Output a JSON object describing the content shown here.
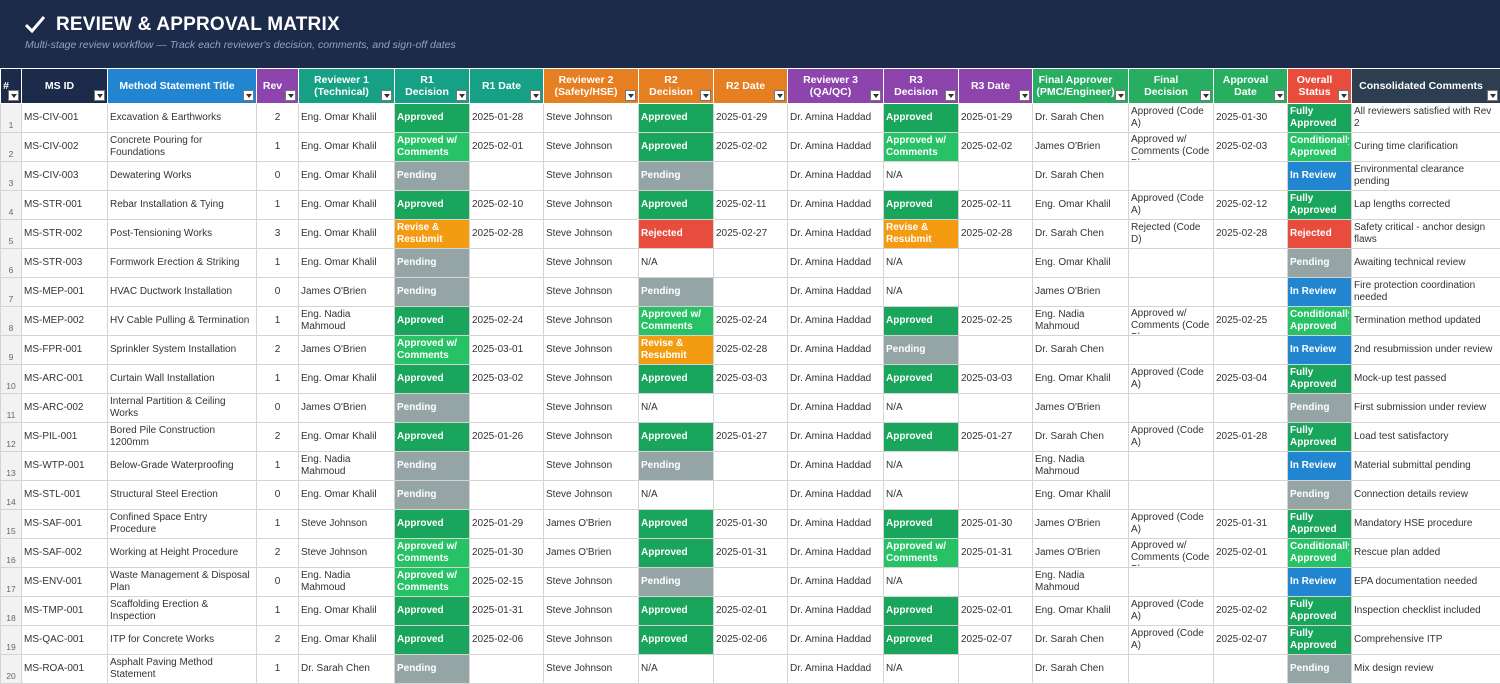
{
  "header": {
    "title": "REVIEW & APPROVAL MATRIX",
    "subtitle": "Multi-stage review workflow — Track each reviewer's decision, comments, and sign-off dates",
    "icon": "checkmark-icon"
  },
  "colors": {
    "banner": "#1c2b4a",
    "approved": "#1aa55c",
    "approved_w_comments": "#27c266",
    "pending": "#95a5a6",
    "revise": "#f39c12",
    "rejected": "#e74c3c",
    "in_review": "#2185d0"
  },
  "columns": [
    {
      "label": "#",
      "color": "#1c2b4a"
    },
    {
      "label": "MS ID",
      "color": "#1c2b4a"
    },
    {
      "label": "Method Statement Title",
      "color": "#2185d0"
    },
    {
      "label": "Rev",
      "color": "#8e44ad"
    },
    {
      "label": "Reviewer 1 (Technical)",
      "color": "#16a085"
    },
    {
      "label": "R1 Decision",
      "color": "#16a085"
    },
    {
      "label": "R1 Date",
      "color": "#16a085"
    },
    {
      "label": "Reviewer 2 (Safety/HSE)",
      "color": "#e67e22"
    },
    {
      "label": "R2 Decision",
      "color": "#e67e22"
    },
    {
      "label": "R2 Date",
      "color": "#e67e22"
    },
    {
      "label": "Reviewer 3 (QA/QC)",
      "color": "#8e44ad"
    },
    {
      "label": "R3 Decision",
      "color": "#8e44ad"
    },
    {
      "label": "R3 Date",
      "color": "#8e44ad"
    },
    {
      "label": "Final Approver (PMC/Engineer)",
      "color": "#27ae60"
    },
    {
      "label": "Final Decision",
      "color": "#27ae60"
    },
    {
      "label": "Approval Date",
      "color": "#27ae60"
    },
    {
      "label": "Overall Status",
      "color": "#e74c3c"
    },
    {
      "label": "Consolidated Comments",
      "color": "#2c3e50"
    }
  ],
  "rows": [
    {
      "n": "1",
      "id": "MS-CIV-001",
      "title": "Excavation & Earthworks",
      "rev": "2",
      "r1": "Eng. Omar Khalil",
      "r1d": "Approved",
      "r1t": "2025-01-28",
      "r2": "Steve Johnson",
      "r2d": "Approved",
      "r2t": "2025-01-29",
      "r3": "Dr. Amina Haddad",
      "r3d": "Approved",
      "r3t": "2025-01-29",
      "fa": "Dr. Sarah Chen",
      "fd": "Approved (Code A)",
      "ft": "2025-01-30",
      "os": "Fully Approved",
      "cc": "All reviewers satisfied with Rev 2"
    },
    {
      "n": "2",
      "id": "MS-CIV-002",
      "title": "Concrete Pouring for Foundations",
      "rev": "1",
      "r1": "Eng. Omar Khalil",
      "r1d": "Approved w/ Comments",
      "r1t": "2025-02-01",
      "r2": "Steve Johnson",
      "r2d": "Approved",
      "r2t": "2025-02-02",
      "r3": "Dr. Amina Haddad",
      "r3d": "Approved w/ Comments",
      "r3t": "2025-02-02",
      "fa": "James O'Brien",
      "fd": "Approved w/ Comments (Code B)",
      "ft": "2025-02-03",
      "os": "Conditionally Approved",
      "cc": "Curing time clarification"
    },
    {
      "n": "3",
      "id": "MS-CIV-003",
      "title": "Dewatering Works",
      "rev": "0",
      "r1": "Eng. Omar Khalil",
      "r1d": "Pending",
      "r1t": "",
      "r2": "Steve Johnson",
      "r2d": "Pending",
      "r2t": "",
      "r3": "Dr. Amina Haddad",
      "r3d": "N/A",
      "r3t": "",
      "fa": "Dr. Sarah Chen",
      "fd": "",
      "ft": "",
      "os": "In Review",
      "cc": "Environmental clearance pending"
    },
    {
      "n": "4",
      "id": "MS-STR-001",
      "title": "Rebar Installation & Tying",
      "rev": "1",
      "r1": "Eng. Omar Khalil",
      "r1d": "Approved",
      "r1t": "2025-02-10",
      "r2": "Steve Johnson",
      "r2d": "Approved",
      "r2t": "2025-02-11",
      "r3": "Dr. Amina Haddad",
      "r3d": "Approved",
      "r3t": "2025-02-11",
      "fa": "Eng. Omar Khalil",
      "fd": "Approved (Code A)",
      "ft": "2025-02-12",
      "os": "Fully Approved",
      "cc": "Lap lengths corrected"
    },
    {
      "n": "5",
      "id": "MS-STR-002",
      "title": "Post-Tensioning Works",
      "rev": "3",
      "r1": "Eng. Omar Khalil",
      "r1d": "Revise & Resubmit",
      "r1t": "2025-02-28",
      "r2": "Steve Johnson",
      "r2d": "Rejected",
      "r2t": "2025-02-27",
      "r3": "Dr. Amina Haddad",
      "r3d": "Revise & Resubmit",
      "r3t": "2025-02-28",
      "fa": "Dr. Sarah Chen",
      "fd": "Rejected (Code D)",
      "ft": "2025-02-28",
      "os": "Rejected",
      "cc": "Safety critical - anchor design flaws"
    },
    {
      "n": "6",
      "id": "MS-STR-003",
      "title": "Formwork Erection & Striking",
      "rev": "1",
      "r1": "Eng. Omar Khalil",
      "r1d": "Pending",
      "r1t": "",
      "r2": "Steve Johnson",
      "r2d": "N/A",
      "r2t": "",
      "r3": "Dr. Amina Haddad",
      "r3d": "N/A",
      "r3t": "",
      "fa": "Eng. Omar Khalil",
      "fd": "",
      "ft": "",
      "os": "Pending",
      "cc": "Awaiting technical review"
    },
    {
      "n": "7",
      "id": "MS-MEP-001",
      "title": "HVAC Ductwork Installation",
      "rev": "0",
      "r1": "James O'Brien",
      "r1d": "Pending",
      "r1t": "",
      "r2": "Steve Johnson",
      "r2d": "Pending",
      "r2t": "",
      "r3": "Dr. Amina Haddad",
      "r3d": "N/A",
      "r3t": "",
      "fa": "James O'Brien",
      "fd": "",
      "ft": "",
      "os": "In Review",
      "cc": "Fire protection coordination needed"
    },
    {
      "n": "8",
      "id": "MS-MEP-002",
      "title": "HV Cable Pulling & Termination",
      "rev": "1",
      "r1": "Eng. Nadia Mahmoud",
      "r1d": "Approved",
      "r1t": "2025-02-24",
      "r2": "Steve Johnson",
      "r2d": "Approved w/ Comments",
      "r2t": "2025-02-24",
      "r3": "Dr. Amina Haddad",
      "r3d": "Approved",
      "r3t": "2025-02-25",
      "fa": "Eng. Nadia Mahmoud",
      "fd": "Approved w/ Comments (Code B)",
      "ft": "2025-02-25",
      "os": "Conditionally Approved",
      "cc": "Termination method updated"
    },
    {
      "n": "9",
      "id": "MS-FPR-001",
      "title": "Sprinkler System Installation",
      "rev": "2",
      "r1": "James O'Brien",
      "r1d": "Approved w/ Comments",
      "r1t": "2025-03-01",
      "r2": "Steve Johnson",
      "r2d": "Revise & Resubmit",
      "r2t": "2025-02-28",
      "r3": "Dr. Amina Haddad",
      "r3d": "Pending",
      "r3t": "",
      "fa": "Dr. Sarah Chen",
      "fd": "",
      "ft": "",
      "os": "In Review",
      "cc": "2nd resubmission under review"
    },
    {
      "n": "10",
      "id": "MS-ARC-001",
      "title": "Curtain Wall Installation",
      "rev": "1",
      "r1": "Eng. Omar Khalil",
      "r1d": "Approved",
      "r1t": "2025-03-02",
      "r2": "Steve Johnson",
      "r2d": "Approved",
      "r2t": "2025-03-03",
      "r3": "Dr. Amina Haddad",
      "r3d": "Approved",
      "r3t": "2025-03-03",
      "fa": "Eng. Omar Khalil",
      "fd": "Approved (Code A)",
      "ft": "2025-03-04",
      "os": "Fully Approved",
      "cc": "Mock-up test passed"
    },
    {
      "n": "11",
      "id": "MS-ARC-002",
      "title": "Internal Partition & Ceiling Works",
      "rev": "0",
      "r1": "James O'Brien",
      "r1d": "Pending",
      "r1t": "",
      "r2": "Steve Johnson",
      "r2d": "N/A",
      "r2t": "",
      "r3": "Dr. Amina Haddad",
      "r3d": "N/A",
      "r3t": "",
      "fa": "James O'Brien",
      "fd": "",
      "ft": "",
      "os": "Pending",
      "cc": "First submission under review"
    },
    {
      "n": "12",
      "id": "MS-PIL-001",
      "title": "Bored Pile Construction 1200mm",
      "rev": "2",
      "r1": "Eng. Omar Khalil",
      "r1d": "Approved",
      "r1t": "2025-01-26",
      "r2": "Steve Johnson",
      "r2d": "Approved",
      "r2t": "2025-01-27",
      "r3": "Dr. Amina Haddad",
      "r3d": "Approved",
      "r3t": "2025-01-27",
      "fa": "Dr. Sarah Chen",
      "fd": "Approved (Code A)",
      "ft": "2025-01-28",
      "os": "Fully Approved",
      "cc": "Load test satisfactory"
    },
    {
      "n": "13",
      "id": "MS-WTP-001",
      "title": "Below-Grade Waterproofing",
      "rev": "1",
      "r1": "Eng. Nadia Mahmoud",
      "r1d": "Pending",
      "r1t": "",
      "r2": "Steve Johnson",
      "r2d": "Pending",
      "r2t": "",
      "r3": "Dr. Amina Haddad",
      "r3d": "N/A",
      "r3t": "",
      "fa": "Eng. Nadia Mahmoud",
      "fd": "",
      "ft": "",
      "os": "In Review",
      "cc": "Material submittal pending"
    },
    {
      "n": "14",
      "id": "MS-STL-001",
      "title": "Structural Steel Erection",
      "rev": "0",
      "r1": "Eng. Omar Khalil",
      "r1d": "Pending",
      "r1t": "",
      "r2": "Steve Johnson",
      "r2d": "N/A",
      "r2t": "",
      "r3": "Dr. Amina Haddad",
      "r3d": "N/A",
      "r3t": "",
      "fa": "Eng. Omar Khalil",
      "fd": "",
      "ft": "",
      "os": "Pending",
      "cc": "Connection details review"
    },
    {
      "n": "15",
      "id": "MS-SAF-001",
      "title": "Confined Space Entry Procedure",
      "rev": "1",
      "r1": "Steve Johnson",
      "r1d": "Approved",
      "r1t": "2025-01-29",
      "r2": "James O'Brien",
      "r2d": "Approved",
      "r2t": "2025-01-30",
      "r3": "Dr. Amina Haddad",
      "r3d": "Approved",
      "r3t": "2025-01-30",
      "fa": "James O'Brien",
      "fd": "Approved (Code A)",
      "ft": "2025-01-31",
      "os": "Fully Approved",
      "cc": "Mandatory HSE procedure"
    },
    {
      "n": "16",
      "id": "MS-SAF-002",
      "title": "Working at Height Procedure",
      "rev": "2",
      "r1": "Steve Johnson",
      "r1d": "Approved w/ Comments",
      "r1t": "2025-01-30",
      "r2": "James O'Brien",
      "r2d": "Approved",
      "r2t": "2025-01-31",
      "r3": "Dr. Amina Haddad",
      "r3d": "Approved w/ Comments",
      "r3t": "2025-01-31",
      "fa": "James O'Brien",
      "fd": "Approved w/ Comments (Code B)",
      "ft": "2025-02-01",
      "os": "Conditionally Approved",
      "cc": "Rescue plan added"
    },
    {
      "n": "17",
      "id": "MS-ENV-001",
      "title": "Waste Management & Disposal Plan",
      "rev": "0",
      "r1": "Eng. Nadia Mahmoud",
      "r1d": "Approved w/ Comments",
      "r1t": "2025-02-15",
      "r2": "Steve Johnson",
      "r2d": "Pending",
      "r2t": "",
      "r3": "Dr. Amina Haddad",
      "r3d": "N/A",
      "r3t": "",
      "fa": "Eng. Nadia Mahmoud",
      "fd": "",
      "ft": "",
      "os": "In Review",
      "cc": "EPA documentation needed"
    },
    {
      "n": "18",
      "id": "MS-TMP-001",
      "title": "Scaffolding Erection & Inspection",
      "rev": "1",
      "r1": "Eng. Omar Khalil",
      "r1d": "Approved",
      "r1t": "2025-01-31",
      "r2": "Steve Johnson",
      "r2d": "Approved",
      "r2t": "2025-02-01",
      "r3": "Dr. Amina Haddad",
      "r3d": "Approved",
      "r3t": "2025-02-01",
      "fa": "Eng. Omar Khalil",
      "fd": "Approved (Code A)",
      "ft": "2025-02-02",
      "os": "Fully Approved",
      "cc": "Inspection checklist included"
    },
    {
      "n": "19",
      "id": "MS-QAC-001",
      "title": "ITP for Concrete Works",
      "rev": "2",
      "r1": "Eng. Omar Khalil",
      "r1d": "Approved",
      "r1t": "2025-02-06",
      "r2": "Steve Johnson",
      "r2d": "Approved",
      "r2t": "2025-02-06",
      "r3": "Dr. Amina Haddad",
      "r3d": "Approved",
      "r3t": "2025-02-07",
      "fa": "Dr. Sarah Chen",
      "fd": "Approved (Code A)",
      "ft": "2025-02-07",
      "os": "Fully Approved",
      "cc": "Comprehensive ITP"
    },
    {
      "n": "20",
      "id": "MS-ROA-001",
      "title": "Asphalt Paving Method Statement",
      "rev": "1",
      "r1": "Dr. Sarah Chen",
      "r1d": "Pending",
      "r1t": "",
      "r2": "Steve Johnson",
      "r2d": "N/A",
      "r2t": "",
      "r3": "Dr. Amina Haddad",
      "r3d": "N/A",
      "r3t": "",
      "fa": "Dr. Sarah Chen",
      "fd": "",
      "ft": "",
      "os": "Pending",
      "cc": "Mix design review"
    }
  ]
}
